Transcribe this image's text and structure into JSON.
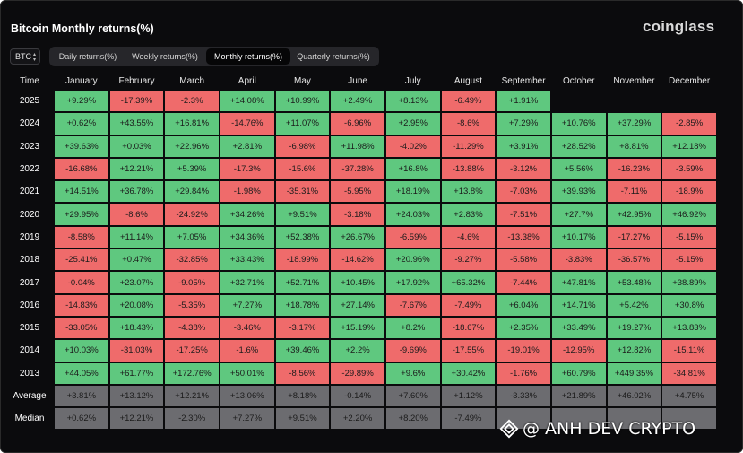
{
  "title": "Bitcoin Monthly returns(%)",
  "brand": "coinglass",
  "coin_select": {
    "value": "BTC",
    "arrow": "⌃⌄"
  },
  "tabs": [
    {
      "label": "Daily returns(%)",
      "active": false
    },
    {
      "label": "Weekly returns(%)",
      "active": false
    },
    {
      "label": "Monthly returns(%)",
      "active": true
    },
    {
      "label": "Quarterly returns(%)",
      "active": false
    }
  ],
  "watermark": "@ ANH DEV CRYPTO",
  "colors": {
    "positive": "#5fc87f",
    "negative": "#ef6b6b",
    "stat": "#6c6c70",
    "background": "#0b0b0d"
  },
  "chart_data": {
    "type": "table",
    "title": "Bitcoin Monthly returns(%)",
    "columns": [
      "Time",
      "January",
      "February",
      "March",
      "April",
      "May",
      "June",
      "July",
      "August",
      "September",
      "October",
      "November",
      "December"
    ],
    "rows": [
      {
        "label": "2025",
        "values": [
          "+9.29%",
          "-17.39%",
          "-2.3%",
          "+14.08%",
          "+10.99%",
          "+2.49%",
          "+8.13%",
          "-6.49%",
          "+1.91%",
          "",
          "",
          ""
        ]
      },
      {
        "label": "2024",
        "values": [
          "+0.62%",
          "+43.55%",
          "+16.81%",
          "-14.76%",
          "+11.07%",
          "-6.96%",
          "+2.95%",
          "-8.6%",
          "+7.29%",
          "+10.76%",
          "+37.29%",
          "-2.85%"
        ]
      },
      {
        "label": "2023",
        "values": [
          "+39.63%",
          "+0.03%",
          "+22.96%",
          "+2.81%",
          "-6.98%",
          "+11.98%",
          "-4.02%",
          "-11.29%",
          "+3.91%",
          "+28.52%",
          "+8.81%",
          "+12.18%"
        ]
      },
      {
        "label": "2022",
        "values": [
          "-16.68%",
          "+12.21%",
          "+5.39%",
          "-17.3%",
          "-15.6%",
          "-37.28%",
          "+16.8%",
          "-13.88%",
          "-3.12%",
          "+5.56%",
          "-16.23%",
          "-3.59%"
        ]
      },
      {
        "label": "2021",
        "values": [
          "+14.51%",
          "+36.78%",
          "+29.84%",
          "-1.98%",
          "-35.31%",
          "-5.95%",
          "+18.19%",
          "+13.8%",
          "-7.03%",
          "+39.93%",
          "-7.11%",
          "-18.9%"
        ]
      },
      {
        "label": "2020",
        "values": [
          "+29.95%",
          "-8.6%",
          "-24.92%",
          "+34.26%",
          "+9.51%",
          "-3.18%",
          "+24.03%",
          "+2.83%",
          "-7.51%",
          "+27.7%",
          "+42.95%",
          "+46.92%"
        ]
      },
      {
        "label": "2019",
        "values": [
          "-8.58%",
          "+11.14%",
          "+7.05%",
          "+34.36%",
          "+52.38%",
          "+26.67%",
          "-6.59%",
          "-4.6%",
          "-13.38%",
          "+10.17%",
          "-17.27%",
          "-5.15%"
        ]
      },
      {
        "label": "2018",
        "values": [
          "-25.41%",
          "+0.47%",
          "-32.85%",
          "+33.43%",
          "-18.99%",
          "-14.62%",
          "+20.96%",
          "-9.27%",
          "-5.58%",
          "-3.83%",
          "-36.57%",
          "-5.15%"
        ]
      },
      {
        "label": "2017",
        "values": [
          "-0.04%",
          "+23.07%",
          "-9.05%",
          "+32.71%",
          "+52.71%",
          "+10.45%",
          "+17.92%",
          "+65.32%",
          "-7.44%",
          "+47.81%",
          "+53.48%",
          "+38.89%"
        ]
      },
      {
        "label": "2016",
        "values": [
          "-14.83%",
          "+20.08%",
          "-5.35%",
          "+7.27%",
          "+18.78%",
          "+27.14%",
          "-7.67%",
          "-7.49%",
          "+6.04%",
          "+14.71%",
          "+5.42%",
          "+30.8%"
        ]
      },
      {
        "label": "2015",
        "values": [
          "-33.05%",
          "+18.43%",
          "-4.38%",
          "-3.46%",
          "-3.17%",
          "+15.19%",
          "+8.2%",
          "-18.67%",
          "+2.35%",
          "+33.49%",
          "+19.27%",
          "+13.83%"
        ]
      },
      {
        "label": "2014",
        "values": [
          "+10.03%",
          "-31.03%",
          "-17.25%",
          "-1.6%",
          "+39.46%",
          "+2.2%",
          "-9.69%",
          "-17.55%",
          "-19.01%",
          "-12.95%",
          "+12.82%",
          "-15.11%"
        ]
      },
      {
        "label": "2013",
        "values": [
          "+44.05%",
          "+61.77%",
          "+172.76%",
          "+50.01%",
          "-8.56%",
          "-29.89%",
          "+9.6%",
          "+30.42%",
          "-1.76%",
          "+60.79%",
          "+449.35%",
          "-34.81%"
        ]
      }
    ],
    "summary_rows": [
      {
        "label": "Average",
        "values": [
          "+3.81%",
          "+13.12%",
          "+12.21%",
          "+13.06%",
          "+8.18%",
          "-0.14%",
          "+7.60%",
          "+1.12%",
          "-3.33%",
          "+21.89%",
          "+46.02%",
          "+4.75%"
        ]
      },
      {
        "label": "Median",
        "values": [
          "+0.62%",
          "+12.21%",
          "-2.30%",
          "+7.27%",
          "+9.51%",
          "+2.20%",
          "+8.20%",
          "-7.49%",
          "",
          "",
          "",
          ""
        ]
      }
    ]
  }
}
